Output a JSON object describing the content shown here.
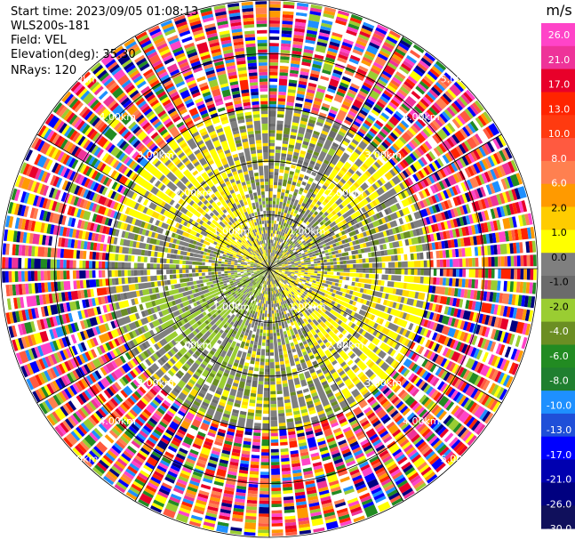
{
  "header": {
    "start_time_label": "Start time:",
    "start_time": "2023/09/05 01:08:13",
    "instrument": "WLS200s-181",
    "field_label": "Field:",
    "field": "VEL",
    "elevation_label": "Elevation(deg):",
    "elevation": "35.30",
    "nrays_label": "NRays:",
    "nrays": "120"
  },
  "chart_data": {
    "type": "heatmap",
    "projection": "polar",
    "field": "VEL",
    "nrays": 120,
    "range_rings_km": [
      1.0,
      2.0,
      3.0,
      4.0,
      5.0
    ],
    "ring_label_unit": "km",
    "ring_labels": [
      "1.00km",
      "2.00km",
      "3.00km",
      "4.00km",
      "5.00km"
    ],
    "max_range_km": 5.0,
    "valid_range_km": 3.0,
    "spokes_deg": [
      0,
      30,
      60,
      90,
      120,
      150,
      180,
      210,
      240,
      270,
      300,
      330
    ],
    "colorbar": {
      "unit": "m/s",
      "ticks": [
        "26.0",
        "21.0",
        "17.0",
        "13.0",
        "10.0",
        "8.0",
        "6.0",
        "2.0",
        "1.0",
        "0.0",
        "-1.0",
        "-2.0",
        "-4.0",
        "-6.0",
        "-8.0",
        "-10.0",
        "-13.0",
        "-17.0",
        "-21.0",
        "-26.0",
        "-30.0"
      ],
      "colors": [
        "#ff44c8",
        "#ee3399",
        "#e8002a",
        "#ff2400",
        "#ff3a10",
        "#ff5a40",
        "#ff8050",
        "#ff9a00",
        "#ffcc00",
        "#ffff00",
        "#7f7f7f",
        "#6b6b6b",
        "#9acd32",
        "#6b8e23",
        "#228b22",
        "#1f7f2f",
        "#1e90ff",
        "#1f4fd8",
        "#0000ff",
        "#0000b0",
        "#000080",
        "#10105c"
      ]
    },
    "near_field_colors": [
      "#7f7f7f",
      "#7f7f7f",
      "#6b6b6b",
      "#ffd700",
      "#ffff00",
      "#9acd32",
      "#6b8e23",
      "#7f7f7f"
    ],
    "far_field_colors": [
      "#ff44c8",
      "#ee3399",
      "#e8002a",
      "#ff2400",
      "#ff5a40",
      "#ff9a00",
      "#ffff00",
      "#9acd32",
      "#228b22",
      "#1e90ff",
      "#0000ff",
      "#000080",
      "#ffffff",
      "#ff8050"
    ]
  }
}
